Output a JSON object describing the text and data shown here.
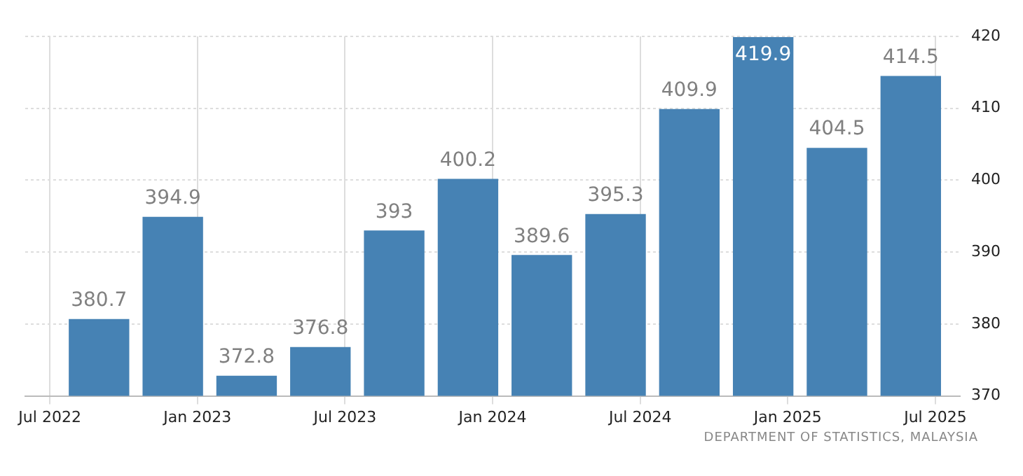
{
  "chart_data": {
    "type": "bar",
    "x": [
      "2022-09",
      "2022-12",
      "2023-03",
      "2023-06",
      "2023-09",
      "2023-12",
      "2024-03",
      "2024-06",
      "2024-09",
      "2024-12",
      "2025-03",
      "2025-06"
    ],
    "values": [
      380.7,
      394.9,
      372.8,
      376.8,
      393,
      400.2,
      389.6,
      395.3,
      409.9,
      419.9,
      404.5,
      414.5
    ],
    "color": "#4682b4",
    "xlim": [
      "2022-06",
      "2025-08"
    ],
    "xticks": [
      {
        "value": "2022-07",
        "label": "Jul 2022"
      },
      {
        "value": "2023-01",
        "label": "Jan 2023"
      },
      {
        "value": "2023-07",
        "label": "Jul 2023"
      },
      {
        "value": "2024-01",
        "label": "Jan 2024"
      },
      {
        "value": "2024-07",
        "label": "Jul 2024"
      },
      {
        "value": "2025-01",
        "label": "Jan 2025"
      },
      {
        "value": "2025-07",
        "label": "Jul 2025"
      }
    ],
    "ylim": [
      370,
      420
    ],
    "yticks": [
      370,
      380,
      390,
      400,
      410,
      420
    ],
    "grid": true,
    "legend": false,
    "data_labels": true,
    "annotations": [
      "DEPARTMENT OF STATISTICS, MALAYSIA"
    ]
  }
}
